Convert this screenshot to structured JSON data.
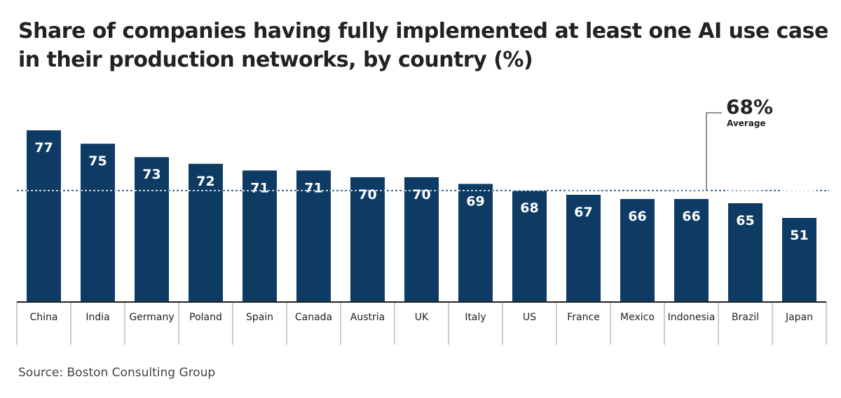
{
  "chart_data": {
    "type": "bar",
    "title": "Share of companies having fully implemented at least one AI use case in their production networks, by country (%)",
    "categories": [
      "China",
      "India",
      "Germany",
      "Poland",
      "Spain",
      "Canada",
      "Austria",
      "UK",
      "Italy",
      "US",
      "France",
      "Mexico",
      "Indonesia",
      "Brazil",
      "Japan"
    ],
    "values": [
      77,
      75,
      73,
      72,
      71,
      71,
      70,
      70,
      69,
      68,
      67,
      66,
      66,
      65,
      51
    ],
    "average": {
      "value": 68,
      "value_label": "68%",
      "label": "Average"
    },
    "bar_color": "#0d3b63",
    "label_color": "#ffffff",
    "grid": false,
    "source": "Source: Boston Consulting Group"
  }
}
